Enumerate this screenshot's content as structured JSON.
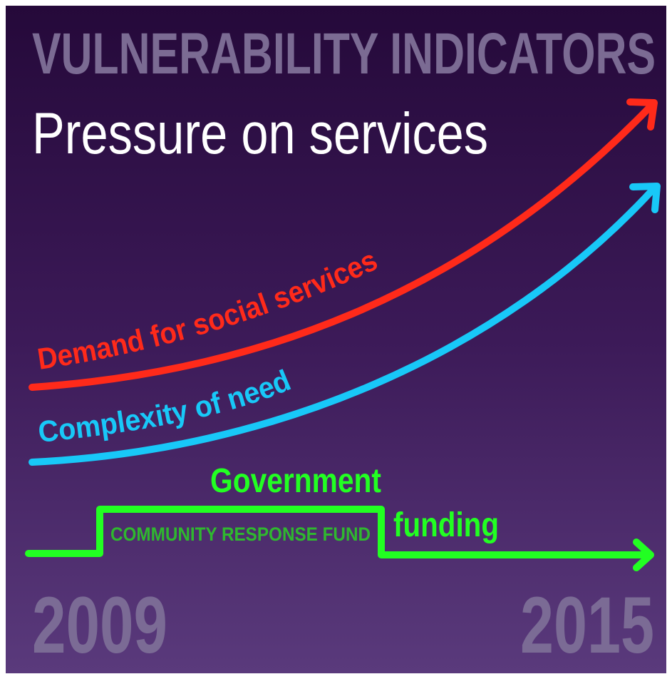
{
  "header": {
    "title": "VULNERABILITY INDICATORS",
    "subtitle": "Pressure on services"
  },
  "lines": [
    {
      "label": "Demand for social services",
      "color": "#ff2a1a"
    },
    {
      "label": "Complexity of need",
      "color": "#18c8f8"
    },
    {
      "label": "Government",
      "label2": "funding",
      "color": "#22ff22",
      "band": "COMMUNITY RESPONSE FUND"
    }
  ],
  "axis": {
    "start": "2009",
    "end": "2015"
  }
}
